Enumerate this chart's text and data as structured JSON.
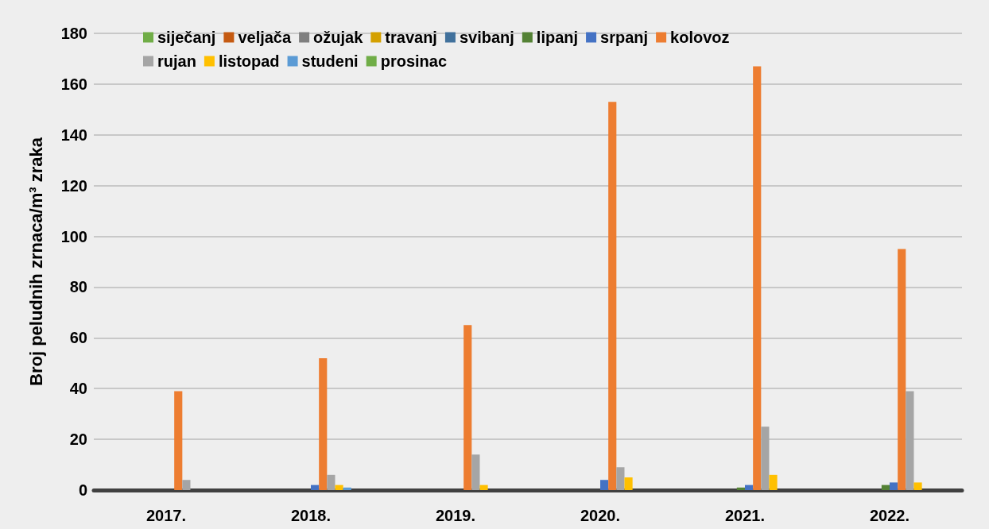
{
  "chart_data": {
    "type": "bar",
    "ylabel": "Broj peludnih zrnaca/m³ zraka",
    "categories": [
      "2017.",
      "2018.",
      "2019.",
      "2020.",
      "2021.",
      "2022."
    ],
    "series": [
      {
        "name": "siječanj",
        "color": "#70ad47",
        "values": [
          0,
          0,
          0,
          0,
          0,
          0
        ]
      },
      {
        "name": "veljača",
        "color": "#c55a11",
        "values": [
          0,
          0,
          0,
          0,
          0,
          0
        ]
      },
      {
        "name": "ožujak",
        "color": "#7f7f7f",
        "values": [
          0,
          0,
          0,
          0,
          0,
          0
        ]
      },
      {
        "name": "travanj",
        "color": "#d4a000",
        "values": [
          0,
          0,
          0,
          0,
          0,
          0
        ]
      },
      {
        "name": "svibanj",
        "color": "#41719c",
        "values": [
          0,
          0,
          0,
          0,
          0,
          0
        ]
      },
      {
        "name": "lipanj",
        "color": "#548235",
        "values": [
          0,
          0,
          0,
          0,
          1,
          2
        ]
      },
      {
        "name": "srpanj",
        "color": "#4472c4",
        "values": [
          0,
          2,
          0,
          4,
          2,
          3
        ]
      },
      {
        "name": "kolovoz",
        "color": "#ed7d31",
        "values": [
          39,
          52,
          65,
          153,
          167,
          95
        ]
      },
      {
        "name": "rujan",
        "color": "#a5a5a5",
        "values": [
          4,
          6,
          14,
          9,
          25,
          39
        ]
      },
      {
        "name": "listopad",
        "color": "#ffc000",
        "values": [
          0,
          2,
          2,
          5,
          6,
          3
        ]
      },
      {
        "name": "studeni",
        "color": "#5b9bd5",
        "values": [
          0,
          1,
          0,
          0,
          0,
          0
        ]
      },
      {
        "name": "prosinac",
        "color": "#70ad47",
        "values": [
          0,
          0,
          0,
          0,
          0,
          0
        ]
      }
    ],
    "ylim": [
      0,
      180
    ],
    "yticks": [
      0,
      20,
      40,
      60,
      80,
      100,
      120,
      140,
      160,
      180
    ],
    "grid": "y",
    "legend": "top"
  }
}
